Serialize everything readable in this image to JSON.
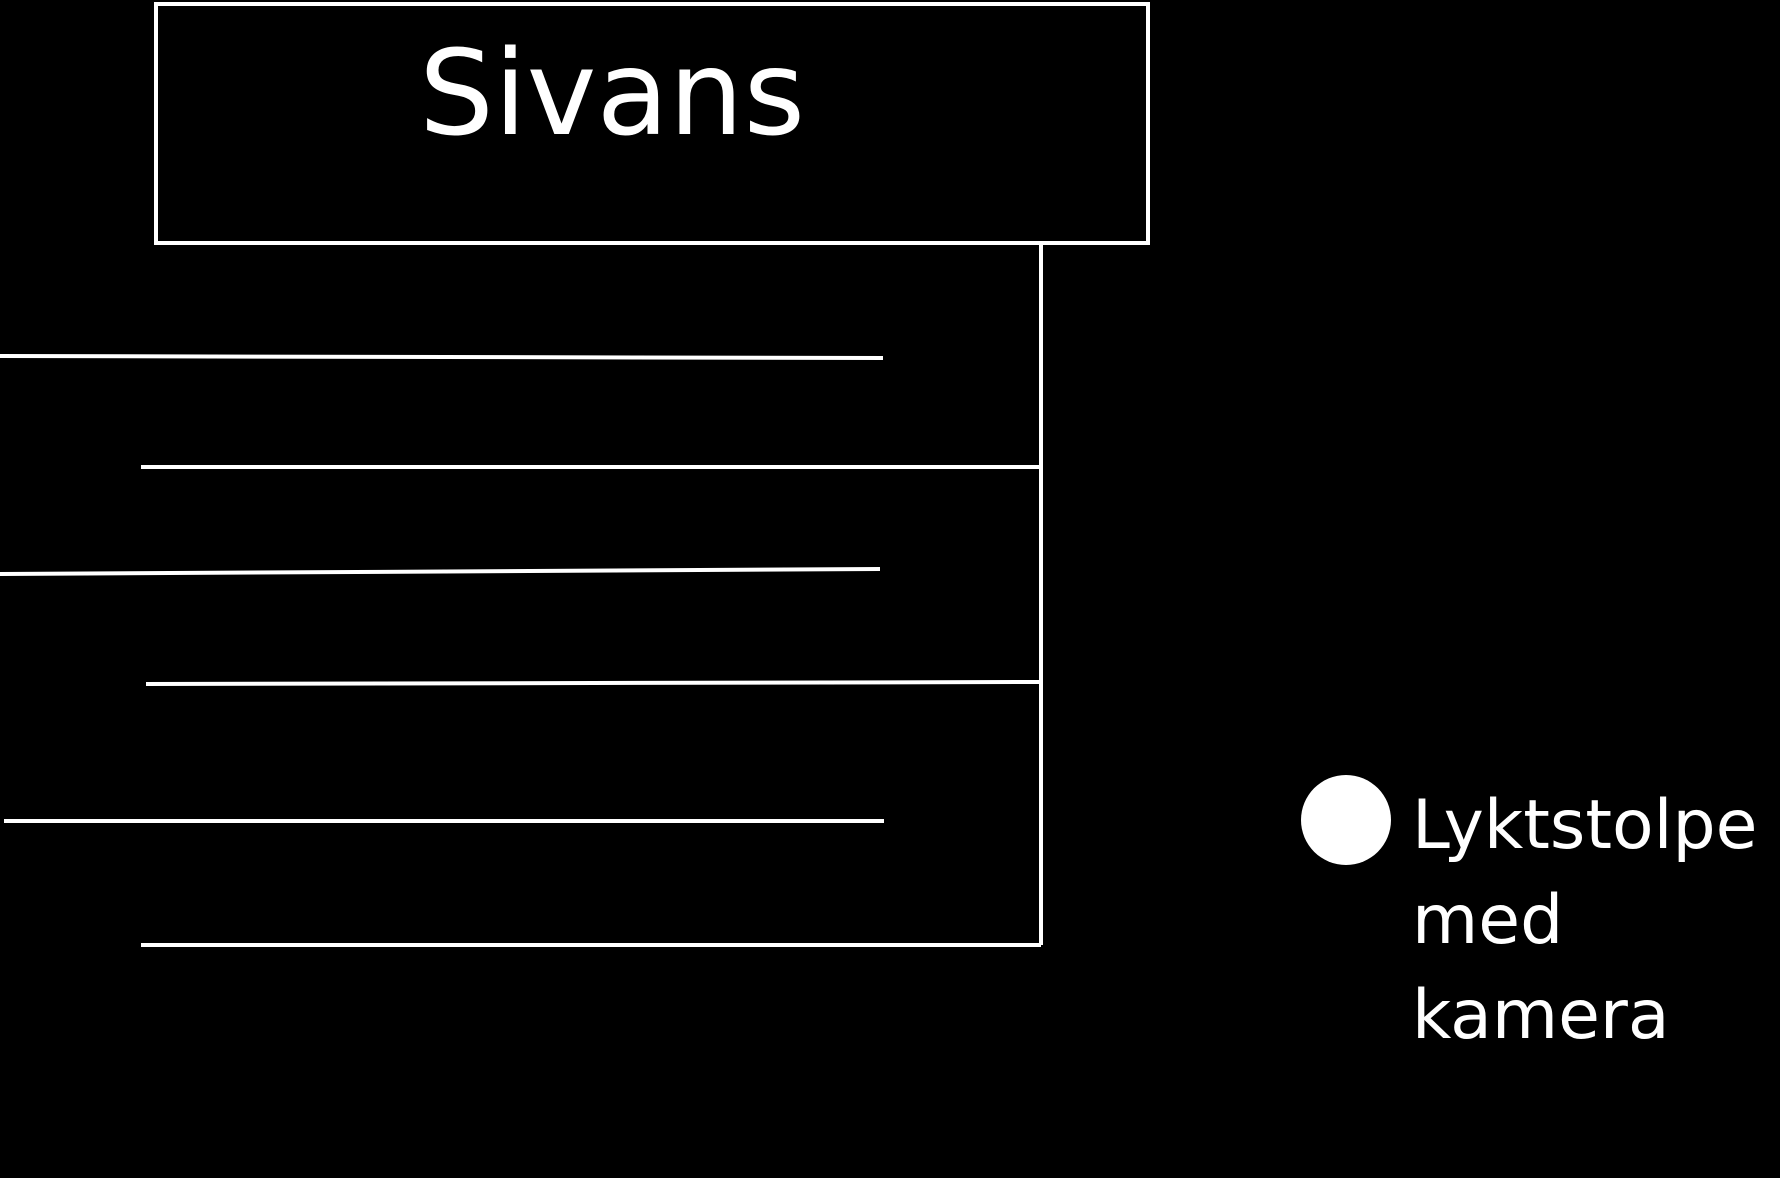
{
  "building": {
    "name": "Sivans"
  },
  "legend": {
    "icon": "filled-circle",
    "label_lines": [
      "Lyktstolpe",
      "med",
      "kamera"
    ]
  },
  "colors": {
    "background": "#000000",
    "stroke": "#ffffff",
    "text": "#ffffff"
  }
}
